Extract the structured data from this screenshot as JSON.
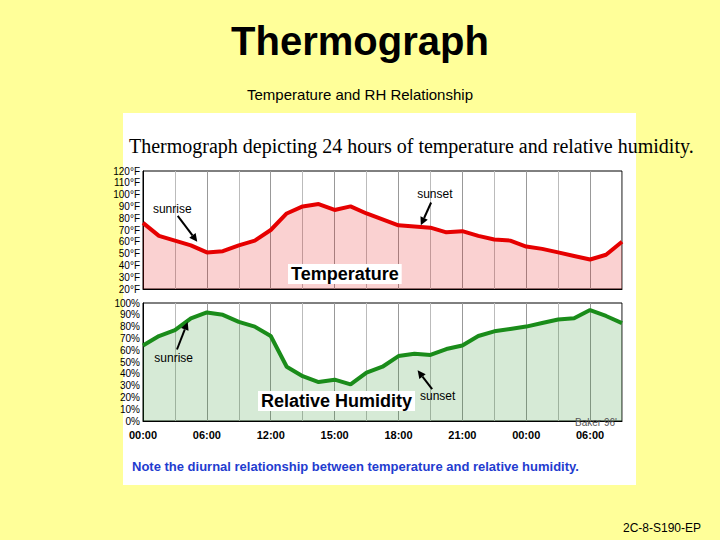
{
  "title": "Thermograph",
  "subtitle": "Temperature and RH Relationship",
  "figure_title": "Thermograph depicting 24 hours of temperature and relative humidity.",
  "note": "Note the diurnal relationship between temperature and relative humidity.",
  "credit": "Baker 96'",
  "slide_code": "2C-8-S190-EP",
  "chart_data": [
    {
      "type": "line",
      "title": "Temperature",
      "x": [
        0,
        0.5,
        1,
        1.5,
        2,
        2.5,
        3,
        3.5,
        4,
        4.5,
        5,
        5.5,
        6,
        6.5,
        7,
        7.5,
        8,
        8.5,
        9,
        9.5,
        10,
        10.5,
        11,
        11.5,
        12,
        12.5,
        13,
        13.5,
        14,
        14.5,
        15
      ],
      "values": [
        76,
        65,
        61,
        57,
        51,
        52,
        57,
        61,
        70,
        84,
        90,
        92,
        87,
        90,
        84,
        79,
        74,
        73,
        72,
        68,
        69,
        65,
        62,
        61,
        56,
        54,
        51,
        48,
        45,
        49,
        60
      ],
      "color": "#e60000",
      "xlim": [
        0,
        15
      ],
      "xticks": [
        {
          "value": 0,
          "label": "00:00"
        },
        {
          "value": 2,
          "label": "06:00"
        },
        {
          "value": 4,
          "label": "12:00"
        },
        {
          "value": 6,
          "label": "15:00"
        },
        {
          "value": 8,
          "label": "18:00"
        },
        {
          "value": 10,
          "label": "21:00"
        },
        {
          "value": 12,
          "label": "00:00"
        },
        {
          "value": 14,
          "label": "06:00"
        }
      ],
      "ylim": [
        20,
        120
      ],
      "yticks": [
        {
          "value": 20,
          "label": "20°F"
        },
        {
          "value": 30,
          "label": "30°F"
        },
        {
          "value": 40,
          "label": "40°F"
        },
        {
          "value": 50,
          "label": "50°F"
        },
        {
          "value": 60,
          "label": "60°F"
        },
        {
          "value": 70,
          "label": "70°F"
        },
        {
          "value": 80,
          "label": "80°F"
        },
        {
          "value": 90,
          "label": "90°F"
        },
        {
          "value": 100,
          "label": "100°F"
        },
        {
          "value": 110,
          "label": "110°F"
        },
        {
          "value": 120,
          "label": "120°F"
        }
      ],
      "grid": true,
      "tick_labels": "y",
      "annotations": [
        {
          "text": "sunrise",
          "x": 1.7,
          "y": 60
        },
        {
          "text": "sunset",
          "x": 8.7,
          "y": 74
        }
      ]
    },
    {
      "type": "line",
      "title": "Relative Humidity",
      "x": [
        0,
        0.5,
        1,
        1.5,
        2,
        2.5,
        3,
        3.5,
        4,
        4.5,
        5,
        5.5,
        6,
        6.5,
        7,
        7.5,
        8,
        8.5,
        9,
        9.5,
        10,
        10.5,
        11,
        11.5,
        12,
        12.5,
        13,
        13.5,
        14,
        14.5,
        15
      ],
      "values": [
        64,
        72,
        77,
        87,
        92,
        90,
        84,
        80,
        72,
        46,
        38,
        33,
        35,
        31,
        41,
        46,
        55,
        57,
        56,
        61,
        64,
        72,
        76,
        78,
        80,
        83,
        86,
        87,
        94,
        89,
        83
      ],
      "color": "#1a8c1a",
      "xlim": [
        0,
        15
      ],
      "xticks": [
        {
          "value": 0,
          "label": "00:00"
        },
        {
          "value": 2,
          "label": "06:00"
        },
        {
          "value": 4,
          "label": "12:00"
        },
        {
          "value": 6,
          "label": "15:00"
        },
        {
          "value": 8,
          "label": "18:00"
        },
        {
          "value": 10,
          "label": "21:00"
        },
        {
          "value": 12,
          "label": "00:00"
        },
        {
          "value": 14,
          "label": "06:00"
        }
      ],
      "ylim": [
        0,
        100
      ],
      "yticks": [
        {
          "value": 0,
          "label": "0%"
        },
        {
          "value": 10,
          "label": "10%"
        },
        {
          "value": 20,
          "label": "20%"
        },
        {
          "value": 30,
          "label": "30%"
        },
        {
          "value": 40,
          "label": "40%"
        },
        {
          "value": 50,
          "label": "50%"
        },
        {
          "value": 60,
          "label": "60%"
        },
        {
          "value": 70,
          "label": "70%"
        },
        {
          "value": 80,
          "label": "80%"
        },
        {
          "value": 90,
          "label": "90%"
        },
        {
          "value": 100,
          "label": "100%"
        }
      ],
      "grid": true,
      "annotations": [
        {
          "text": "sunrise",
          "x": 1.4,
          "y": 84
        },
        {
          "text": "sunset",
          "x": 8.6,
          "y": 43
        }
      ]
    }
  ]
}
